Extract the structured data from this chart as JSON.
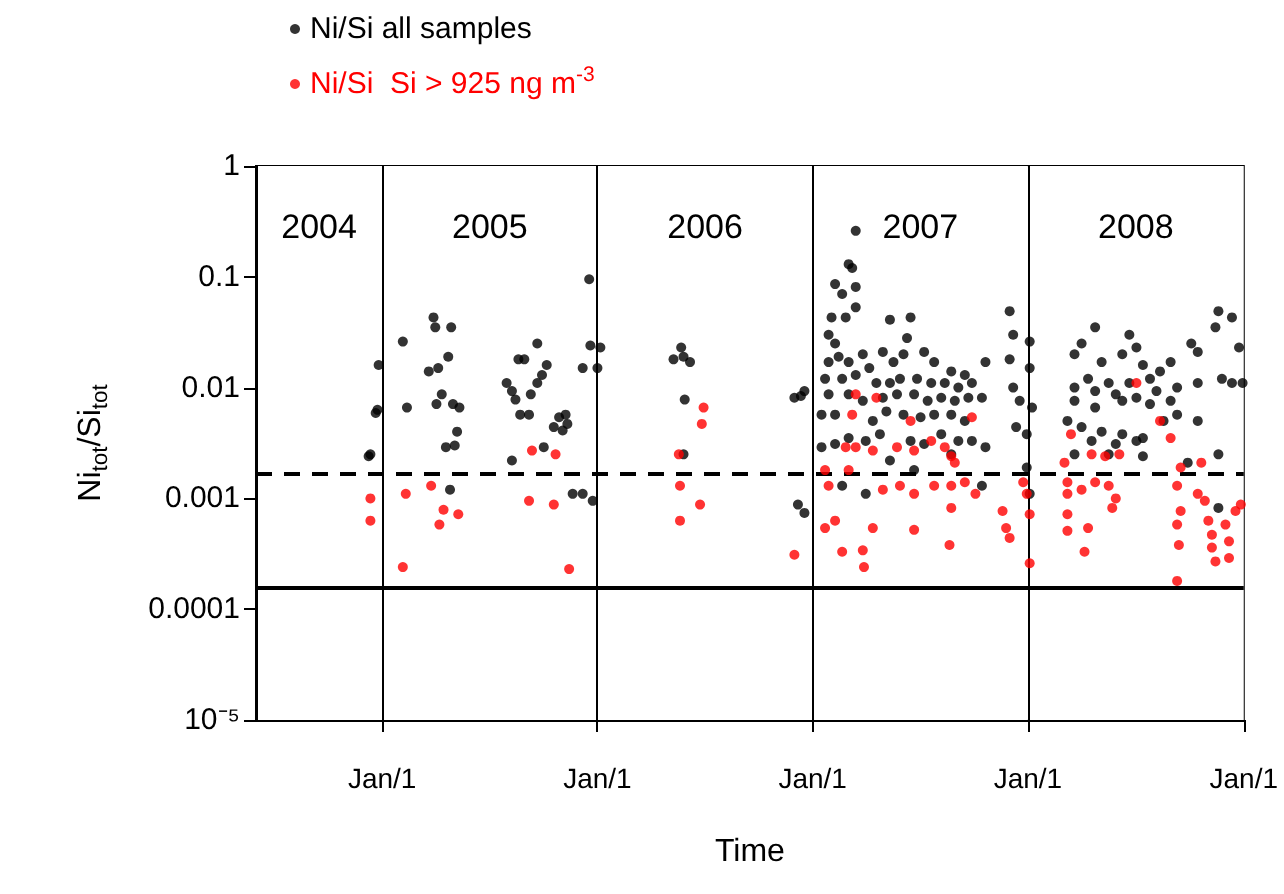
{
  "chart_data": {
    "type": "scatter",
    "xlabel": "Time",
    "ylabel": "Ni$_{tot}$/Si$_{tot}$",
    "log": true,
    "grid": false,
    "legend": "top left",
    "marker": "circle",
    "xlim": [
      "2004-06-01",
      "2009-01-01"
    ],
    "xticks": [
      {
        "value": "2005-01-01",
        "label": "Jan/1"
      },
      {
        "value": "2006-01-01",
        "label": "Jan/1"
      },
      {
        "value": "2007-01-01",
        "label": "Jan/1"
      },
      {
        "value": "2008-01-01",
        "label": "Jan/1"
      },
      {
        "value": "2009-01-01",
        "label": "Jan/1"
      }
    ],
    "ylim": [
      1e-05,
      1
    ],
    "yticks": [
      {
        "value": 1e-05,
        "label": "10⁻⁵"
      },
      0.0001,
      0.001,
      0.01,
      0.1,
      1
    ],
    "ref_lines": [
      {
        "axis": "y",
        "value": 0.0017,
        "line_style": "dashed",
        "color": "#000000"
      },
      {
        "axis": "y",
        "value": 0.00016,
        "line_style": "solid",
        "color": "#000000"
      },
      {
        "axis": "x",
        "value": "2005-01-01",
        "line_style": "solid",
        "color": "#000000"
      },
      {
        "axis": "x",
        "value": "2006-01-01",
        "line_style": "solid",
        "color": "#000000"
      },
      {
        "axis": "x",
        "value": "2007-01-01",
        "line_style": "solid",
        "color": "#000000"
      },
      {
        "axis": "x",
        "value": "2008-01-01",
        "line_style": "solid",
        "color": "#000000"
      }
    ],
    "bands": [
      {
        "axis": "x",
        "from": "2004-06-01",
        "to": "2005-01-01",
        "label": "2004",
        "color": "#ffffff"
      },
      {
        "axis": "x",
        "from": "2005-01-01",
        "to": "2006-01-01",
        "label": "2005",
        "color": "#ffffff"
      },
      {
        "axis": "x",
        "from": "2006-01-01",
        "to": "2007-01-01",
        "label": "2006",
        "color": "#ffffff"
      },
      {
        "axis": "x",
        "from": "2007-01-01",
        "to": "2008-01-01",
        "label": "2007",
        "color": "#ffffff"
      },
      {
        "axis": "x",
        "from": "2008-01-01",
        "to": "2009-01-01",
        "label": "2008",
        "color": "#ffffff"
      }
    ],
    "series": [
      {
        "name": "Ni/Si all samples",
        "color": "#000000",
        "x": [
          "2004-12-09",
          "2004-12-12",
          "2004-12-24",
          "2004-12-21",
          "2004-12-26",
          "2005-02-05",
          "2005-02-12",
          "2005-03-21",
          "2005-04-01",
          "2005-03-29",
          "2005-04-28",
          "2005-04-23",
          "2005-04-06",
          "2005-04-12",
          "2005-04-03",
          "2005-05-01",
          "2005-05-12",
          "2005-05-08",
          "2005-04-19",
          "2005-05-04",
          "2005-04-26",
          "2005-07-31",
          "2005-08-09",
          "2005-08-15",
          "2005-08-23",
          "2005-09-07",
          "2005-09-10",
          "2005-08-20",
          "2005-08-30",
          "2005-09-21",
          "2005-10-07",
          "2005-09-29",
          "2005-09-21",
          "2005-10-19",
          "2005-10-28",
          "2005-11-08",
          "2005-11-11",
          "2005-11-03",
          "2005-08-09",
          "2005-10-02",
          "2005-11-20",
          "2005-12-07",
          "2005-12-24",
          "2005-12-18",
          "2005-12-07",
          "2005-12-20",
          "2006-01-06",
          "2006-01-01",
          "2006-05-10",
          "2006-05-23",
          "2006-05-27",
          "2006-06-07",
          "2006-05-29",
          "2006-05-27",
          "2006-12-01",
          "2006-12-12",
          "2006-12-18",
          "2006-12-07",
          "2006-12-18",
          "2007-03-15",
          "2007-03-03",
          "2007-03-09",
          "2007-02-08",
          "2007-03-15",
          "2007-02-20",
          "2007-03-15",
          "2007-02-02",
          "2007-02-26",
          "2007-05-12",
          "2007-06-16",
          "2007-01-28",
          "2007-06-10",
          "2007-02-08",
          "2007-02-14",
          "2007-01-28",
          "2007-03-03",
          "2007-03-27",
          "2007-04-07",
          "2007-04-30",
          "2007-05-18",
          "2007-06-04",
          "2007-07-09",
          "2007-07-26",
          "2007-08-24",
          "2007-09-16",
          "2007-10-21",
          "2007-01-22",
          "2007-02-20",
          "2007-03-15",
          "2007-04-19",
          "2007-05-12",
          "2007-05-29",
          "2007-06-27",
          "2007-07-21",
          "2007-08-13",
          "2007-09-05",
          "2007-09-28",
          "2007-01-28",
          "2007-03-03",
          "2007-03-27",
          "2007-04-30",
          "2007-05-24",
          "2007-06-22",
          "2007-07-15",
          "2007-08-07",
          "2007-08-30",
          "2007-09-22",
          "2007-10-15",
          "2007-01-16",
          "2007-02-08",
          "2007-03-09",
          "2007-04-13",
          "2007-05-06",
          "2007-06-04",
          "2007-07-03",
          "2007-07-26",
          "2007-08-24",
          "2007-09-16",
          "2007-01-16",
          "2007-02-08",
          "2007-03-03",
          "2007-04-01",
          "2007-04-25",
          "2007-05-24",
          "2007-06-16",
          "2007-07-09",
          "2007-08-07",
          "2007-09-05",
          "2007-09-28",
          "2007-10-21",
          "2007-02-20",
          "2007-04-01",
          "2007-06-22",
          "2007-10-15",
          "2007-08-24",
          "2007-05-12",
          "2007-12-01",
          "2007-12-07",
          "2007-12-01",
          "2007-12-07",
          "2007-12-18",
          "2007-12-12",
          "2007-12-30",
          "2008-01-04",
          "2008-01-04",
          "2008-01-08",
          "2007-12-30",
          "2008-01-04",
          "2008-04-24",
          "2008-04-01",
          "2008-03-20",
          "2008-05-05",
          "2008-06-21",
          "2008-06-09",
          "2008-07-03",
          "2008-07-14",
          "2008-04-12",
          "2008-05-17",
          "2008-06-21",
          "2008-07-26",
          "2008-08-12",
          "2008-08-30",
          "2008-10-04",
          "2008-10-15",
          "2008-03-20",
          "2008-04-24",
          "2008-05-29",
          "2008-07-03",
          "2008-08-06",
          "2008-09-10",
          "2008-10-15",
          "2008-03-20",
          "2008-04-24",
          "2008-06-09",
          "2008-07-26",
          "2008-08-30",
          "2008-03-08",
          "2008-04-01",
          "2008-05-05",
          "2008-06-09",
          "2008-07-14",
          "2008-08-18",
          "2008-09-10",
          "2008-04-18",
          "2008-05-29",
          "2008-07-03",
          "2008-03-20",
          "2008-05-17",
          "2008-07-14",
          "2008-10-15",
          "2008-11-19",
          "2008-09-28",
          "2008-11-19",
          "2008-12-12",
          "2008-11-14",
          "2008-11-25",
          "2008-12-12",
          "2008-12-24",
          "2008-12-30",
          "2008-11-19"
        ],
        "values": [
          0.0024,
          0.0025,
          0.0063,
          0.0059,
          0.016,
          0.026,
          0.0066,
          0.014,
          0.035,
          0.043,
          0.035,
          0.019,
          0.015,
          0.0087,
          0.0071,
          0.0071,
          0.0066,
          0.004,
          0.0029,
          0.003,
          0.0012,
          0.011,
          0.0093,
          0.0078,
          0.0057,
          0.0057,
          0.0087,
          0.018,
          0.018,
          0.025,
          0.016,
          0.013,
          0.011,
          0.0044,
          0.0054,
          0.0057,
          0.0047,
          0.0041,
          0.0022,
          0.0029,
          0.0011,
          0.0011,
          0.00095,
          0.095,
          0.015,
          0.024,
          0.023,
          0.015,
          0.018,
          0.023,
          0.019,
          0.017,
          0.0078,
          0.0025,
          0.0081,
          0.0084,
          0.0093,
          0.00088,
          0.00074,
          0.26,
          0.13,
          0.12,
          0.086,
          0.081,
          0.07,
          0.053,
          0.043,
          0.043,
          0.041,
          0.043,
          0.03,
          0.028,
          0.025,
          0.019,
          0.017,
          0.017,
          0.02,
          0.015,
          0.021,
          0.017,
          0.02,
          0.021,
          0.017,
          0.014,
          0.013,
          0.017,
          0.012,
          0.012,
          0.013,
          0.011,
          0.011,
          0.012,
          0.012,
          0.011,
          0.011,
          0.01,
          0.011,
          0.0087,
          0.0087,
          0.0076,
          0.0081,
          0.0087,
          0.0087,
          0.0076,
          0.0081,
          0.0076,
          0.0081,
          0.0081,
          0.0057,
          0.0057,
          null,
          0.005,
          0.0061,
          0.0057,
          0.0054,
          0.0057,
          0.0057,
          0.005,
          0.0029,
          0.0031,
          0.0035,
          0.0033,
          0.0038,
          null,
          0.0033,
          0.0031,
          0.0038,
          0.0033,
          0.0033,
          0.0029,
          0.0013,
          0.0011,
          0.0018,
          0.0013,
          0.0025,
          0.0022,
          0.049,
          0.03,
          0.018,
          0.01,
          0.0076,
          0.0044,
          0.0038,
          0.026,
          0.015,
          0.0066,
          0.0019,
          0.0011,
          0.035,
          0.025,
          0.02,
          0.017,
          0.03,
          0.02,
          0.023,
          0.016,
          0.012,
          0.011,
          0.011,
          0.012,
          0.014,
          0.017,
          0.025,
          0.021,
          0.01,
          0.0093,
          0.0087,
          0.0081,
          0.0093,
          0.01,
          0.011,
          0.0076,
          0.0066,
          0.0076,
          0.0071,
          0.0076,
          0.005,
          0.0044,
          0.004,
          0.0038,
          0.0035,
          0.005,
          0.0057,
          0.0033,
          0.0031,
          0.0033,
          0.0025,
          0.0025,
          0.0024,
          0.005,
          0.0025,
          0.0021,
          0.049,
          0.043,
          0.035,
          0.012,
          0.011,
          0.023,
          0.011,
          0.00082
        ]
      },
      {
        "name": "Ni/Si  Si > 925 ng m$^{-3}$",
        "color": "#ff0000",
        "x": [
          "2004-12-12",
          "2004-12-12",
          "2005-02-10",
          "2005-02-05",
          "2005-03-25",
          "2005-04-15",
          "2005-04-08",
          "2005-05-10",
          "2005-09-07",
          "2005-09-12",
          "2005-10-22",
          "2005-10-19",
          "2005-11-14",
          "2006-05-19",
          "2006-05-21",
          "2006-05-21",
          "2006-06-30",
          "2006-06-27",
          "2006-06-24",
          "2006-12-01",
          "2007-01-22",
          "2007-01-28",
          "2007-03-03",
          "2007-03-15",
          "2007-03-09",
          "2007-04-19",
          "2007-02-26",
          "2007-03-15",
          "2007-04-13",
          "2007-05-24",
          "2007-06-22",
          "2007-06-16",
          "2007-07-21",
          "2007-08-13",
          "2007-08-24",
          "2007-07-26",
          "2007-08-24",
          "2007-05-29",
          "2007-06-22",
          "2007-04-30",
          "2007-09-16",
          "2007-10-04",
          "2007-02-08",
          "2007-01-22",
          "2007-04-13",
          "2007-06-22",
          "2007-02-20",
          "2007-03-27",
          "2007-03-29",
          "2007-08-21",
          "2007-08-24",
          "2007-09-28",
          "2007-08-30",
          "2007-11-19",
          "2007-11-25",
          "2007-12-01",
          "2007-12-24",
          "2008-01-04",
          "2007-12-30",
          "2008-01-04",
          "2008-03-03",
          "2008-03-08",
          "2008-03-08",
          "2008-03-08",
          "2008-03-08",
          "2008-04-01",
          "2008-04-12",
          "2008-04-06",
          "2008-04-24",
          "2008-05-17",
          "2008-05-23",
          "2008-05-29",
          "2008-03-14",
          "2008-04-18",
          "2008-05-11",
          "2008-06-04",
          "2008-07-03",
          "2008-08-12",
          "2008-08-30",
          "2008-09-16",
          "2008-09-10",
          "2008-09-16",
          "2008-09-10",
          "2008-09-13",
          "2008-09-10",
          "2008-10-21",
          "2008-10-15",
          "2008-10-27",
          "2008-11-02",
          "2008-11-08",
          "2008-11-08",
          "2008-11-14",
          "2008-12-01",
          "2008-12-07",
          "2008-12-07",
          "2008-12-18",
          "2008-12-27"
        ],
        "values": [
          0.001,
          0.00063,
          0.0011,
          0.00024,
          0.0013,
          0.00079,
          0.00058,
          0.00072,
          0.00095,
          0.0027,
          0.0025,
          0.00088,
          0.00023,
          0.0025,
          0.0013,
          0.00063,
          0.0066,
          0.0047,
          0.00088,
          0.00031,
          0.0018,
          0.0013,
          0.0018,
          0.0087,
          0.0057,
          0.0081,
          0.0029,
          0.0029,
          0.0027,
          0.0029,
          0.0027,
          0.005,
          0.0033,
          0.0029,
          0.0024,
          0.0013,
          0.0013,
          0.0013,
          0.0011,
          0.0012,
          0.0014,
          0.0011,
          0.00063,
          0.00054,
          0.00054,
          0.00052,
          0.00033,
          0.00034,
          0.00024,
          0.00038,
          0.00082,
          0.0054,
          0.0021,
          0.00077,
          0.00054,
          0.00044,
          0.0014,
          0.00072,
          0.0011,
          0.00026,
          0.0021,
          0.0014,
          0.0011,
          0.00072,
          0.00051,
          0.0012,
          0.00054,
          0.00033,
          0.0014,
          0.0013,
          0.00082,
          0.001,
          0.0038,
          0.0025,
          0.0024,
          0.0025,
          0.011,
          0.005,
          0.0035,
          0.0019,
          0.0013,
          0.00077,
          0.00058,
          0.00038,
          0.00018,
          0.0021,
          0.0011,
          0.00095,
          0.00063,
          0.00047,
          0.00036,
          0.00027,
          0.00058,
          0.00041,
          0.00029,
          0.00077,
          0.00088
        ]
      }
    ]
  }
}
